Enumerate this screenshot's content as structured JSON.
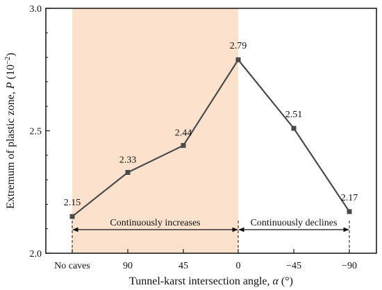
{
  "chart_data": {
    "type": "line",
    "categories": [
      "No caves",
      "90",
      "45",
      "0",
      "−45",
      "−90"
    ],
    "series": [
      {
        "values": [
          2.15,
          2.33,
          2.44,
          2.79,
          2.51,
          2.17
        ]
      }
    ],
    "data_labels": [
      "2.15",
      "2.33",
      "2.44",
      "2.79",
      "2.51",
      "2.17"
    ],
    "xlabel_main": "Tunnel-karst intersection angle, ",
    "xlabel_symbol": "α",
    "xlabel_unit": " (°)",
    "ylabel_main": "Extremum of plastic zone, ",
    "ylabel_symbol": "P",
    "ylabel_unit_base": " (10",
    "ylabel_unit_exp": "−2",
    "ylabel_unit_close": ")",
    "ylim": [
      2.0,
      3.0
    ],
    "yticks": [
      2.0,
      2.5,
      3.0
    ],
    "ytick_labels": [
      "2.0",
      "2.5",
      "3.0"
    ],
    "grid": false,
    "line_color": "#4a4a4a",
    "marker_color": "#4a4a4a",
    "shaded_region": {
      "from_index": 0,
      "to_index": 3,
      "color": "#fce1cc"
    },
    "annotations": [
      {
        "text": "Continuously increases",
        "from_index": 0,
        "to_index": 3
      },
      {
        "text": "Continuously declines",
        "from_index": 3,
        "to_index": 5
      }
    ]
  }
}
